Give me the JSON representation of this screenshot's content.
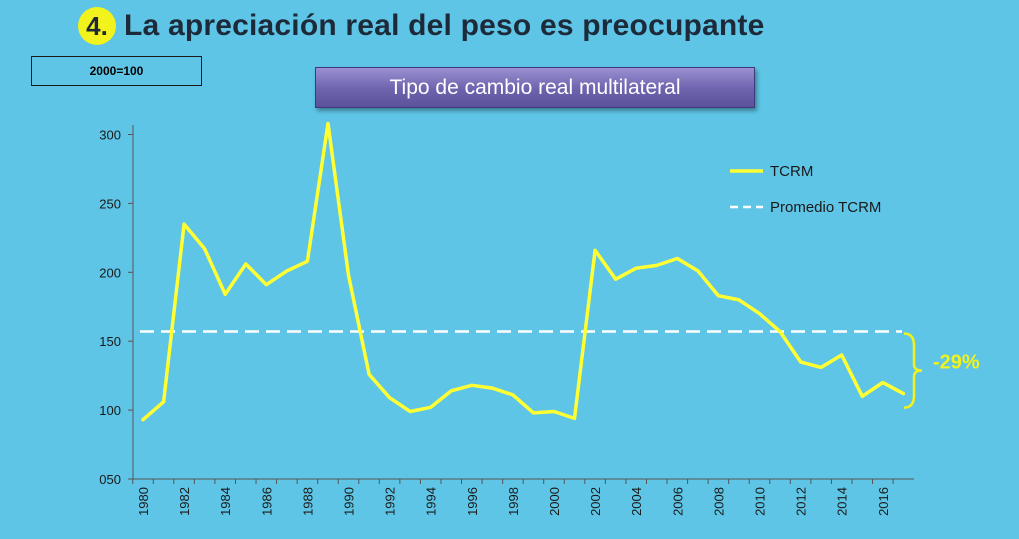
{
  "slide": {
    "number": "4.",
    "title": "La apreciación real del peso es preocupante",
    "base_note": "2000=100"
  },
  "colors": {
    "background": "#5ec5e6",
    "series": "#ffff33",
    "average_line": "#ffffff",
    "annotation": "#f2f21c"
  },
  "chart_data": {
    "type": "line",
    "title": "Tipo de cambio real multilateral",
    "x": [
      1980,
      1981,
      1982,
      1983,
      1984,
      1985,
      1986,
      1987,
      1988,
      1989,
      1990,
      1991,
      1992,
      1993,
      1994,
      1995,
      1996,
      1997,
      1998,
      1999,
      2000,
      2001,
      2002,
      2003,
      2004,
      2005,
      2006,
      2007,
      2008,
      2009,
      2010,
      2011,
      2012,
      2013,
      2014,
      2015,
      2016,
      2017
    ],
    "x_tick_labels": [
      "1980",
      "1982",
      "1984",
      "1986",
      "1988",
      "1990",
      "1992",
      "1994",
      "1996",
      "1998",
      "2000",
      "2002",
      "2004",
      "2006",
      "2008",
      "2010",
      "2012",
      "2014",
      "2016"
    ],
    "y_tick_labels": [
      "050",
      "100",
      "150",
      "200",
      "250",
      "300"
    ],
    "ylim": [
      50,
      320
    ],
    "series": [
      {
        "name": "TCRM",
        "values": [
          93,
          106,
          235,
          217,
          184,
          206,
          191,
          201,
          208,
          308,
          198,
          126,
          109,
          99,
          102,
          114,
          118,
          116,
          111,
          98,
          99,
          94,
          216,
          195,
          203,
          205,
          210,
          201,
          183,
          180,
          170,
          157,
          135,
          131,
          140,
          110,
          120,
          112
        ]
      },
      {
        "name": "Promedio TCRM",
        "style": "dashed",
        "value": 157
      }
    ],
    "legend_position": "top-right",
    "annotation": "-29%"
  }
}
